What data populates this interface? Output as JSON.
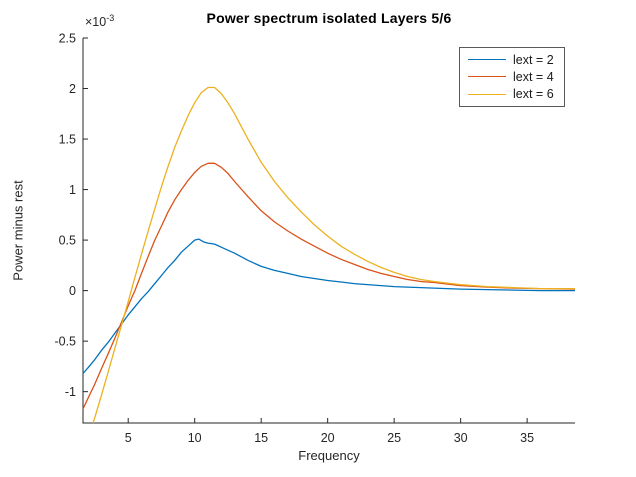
{
  "chart_data": {
    "type": "line",
    "title": "Power spectrum isolated Layers 5/6",
    "xlabel": "Frequency",
    "ylabel": "Power minus rest",
    "y_scale_label": {
      "base": "×10",
      "exponent": "-3"
    },
    "y_values_unit": "1e-3",
    "xlim": [
      1.6,
      38.6
    ],
    "ylim": [
      -1.31,
      2.5
    ],
    "xticks": [
      5,
      10,
      15,
      20,
      25,
      30,
      35
    ],
    "xtick_labels": [
      "5",
      "10",
      "15",
      "20",
      "25",
      "30",
      "35"
    ],
    "yticks": [
      -1,
      -0.5,
      0,
      0.5,
      1,
      1.5,
      2,
      2.5
    ],
    "ytick_labels": [
      "-1",
      "-0.5",
      "0",
      "0.5",
      "1",
      "1.5",
      "2",
      "2.5"
    ],
    "grid": false,
    "legend_position": "top-right",
    "axis_color": "#262626",
    "series": [
      {
        "name": "lext = 2",
        "color": "#0072BD",
        "x": [
          1.6,
          2,
          2.5,
          3,
          3.5,
          4,
          4.5,
          5,
          5.5,
          6,
          6.5,
          7,
          7.5,
          8,
          8.5,
          9,
          9.5,
          10,
          10.3,
          10.7,
          11,
          11.5,
          12,
          12.5,
          13,
          14,
          15,
          16,
          17,
          18,
          19,
          20,
          21,
          22,
          23,
          24,
          25,
          26,
          27,
          28,
          30,
          32,
          34,
          36,
          38.6
        ],
        "y": [
          -0.82,
          -0.76,
          -0.68,
          -0.59,
          -0.51,
          -0.42,
          -0.33,
          -0.24,
          -0.16,
          -0.08,
          -0.01,
          0.07,
          0.15,
          0.23,
          0.3,
          0.38,
          0.44,
          0.5,
          0.51,
          0.48,
          0.47,
          0.46,
          0.43,
          0.4,
          0.37,
          0.3,
          0.24,
          0.2,
          0.17,
          0.14,
          0.12,
          0.1,
          0.085,
          0.07,
          0.06,
          0.05,
          0.04,
          0.035,
          0.03,
          0.025,
          0.015,
          0.01,
          0.005,
          0,
          0
        ]
      },
      {
        "name": "lext = 4",
        "color": "#D95319",
        "x": [
          1.6,
          2,
          2.5,
          3,
          3.5,
          4,
          4.5,
          5,
          5.5,
          6,
          6.5,
          7,
          7.5,
          8,
          8.5,
          9,
          9.5,
          10,
          10.5,
          11,
          11.5,
          12,
          12.5,
          13,
          14,
          15,
          16,
          17,
          18,
          19,
          20,
          21,
          22,
          23,
          24,
          25,
          26,
          27,
          28,
          30,
          32,
          34,
          36,
          38.6
        ],
        "y": [
          -1.17,
          -1.06,
          -0.92,
          -0.77,
          -0.62,
          -0.47,
          -0.31,
          -0.15,
          0.0,
          0.17,
          0.34,
          0.5,
          0.64,
          0.78,
          0.9,
          1.0,
          1.09,
          1.17,
          1.23,
          1.26,
          1.26,
          1.22,
          1.16,
          1.08,
          0.93,
          0.79,
          0.68,
          0.59,
          0.51,
          0.44,
          0.37,
          0.31,
          0.26,
          0.21,
          0.17,
          0.14,
          0.11,
          0.09,
          0.08,
          0.05,
          0.035,
          0.025,
          0.02,
          0.015
        ]
      },
      {
        "name": "lext = 6",
        "color": "#EDB120",
        "x": [
          2.35,
          2.5,
          3,
          3.5,
          4,
          4.5,
          5,
          5.5,
          6,
          6.5,
          7,
          7.5,
          8,
          8.5,
          9,
          9.5,
          10,
          10.5,
          11,
          11.5,
          12,
          12.5,
          13,
          14,
          15,
          16,
          17,
          18,
          19,
          20,
          21,
          22,
          23,
          24,
          25,
          26,
          27,
          28,
          30,
          32,
          34,
          36,
          38.6
        ],
        "y": [
          -1.31,
          -1.25,
          -1.03,
          -0.8,
          -0.57,
          -0.34,
          -0.11,
          0.13,
          0.36,
          0.59,
          0.81,
          1.03,
          1.23,
          1.42,
          1.58,
          1.73,
          1.86,
          1.96,
          2.01,
          2.01,
          1.95,
          1.86,
          1.75,
          1.5,
          1.27,
          1.08,
          0.92,
          0.78,
          0.65,
          0.54,
          0.44,
          0.36,
          0.29,
          0.23,
          0.18,
          0.14,
          0.11,
          0.09,
          0.06,
          0.04,
          0.03,
          0.02,
          0.02
        ]
      }
    ]
  }
}
